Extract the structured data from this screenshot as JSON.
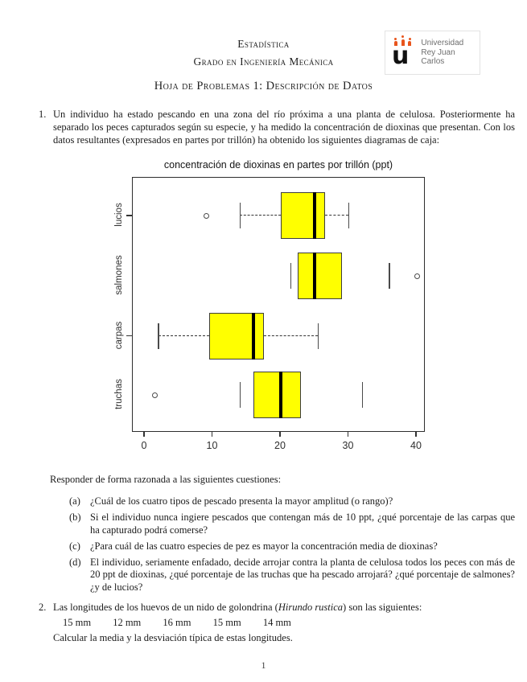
{
  "header": {
    "course": "Estadística",
    "degree": "Grado en Ingeniería Mecánica",
    "sheet_title": "Hoja de Problemas 1: Descripción de Datos",
    "logo": {
      "letter": "u",
      "line1": "Universidad",
      "line2": "Rey Juan Carlos",
      "crown_color": "#e8541c"
    }
  },
  "problem1": {
    "number": "1.",
    "intro": "Un individuo ha estado pescando en una zona del río próxima a una planta de celulosa. Posteriormente ha separado los peces capturados según su especie, y ha medido la concentración de dioxinas que presentan. Con los datos resultantes (expresados en partes por trillón) ha obtenido los siguientes diagramas de caja:",
    "responder": "Responder de forma razonada a las siguientes cuestiones:",
    "questions": [
      {
        "label": "(a)",
        "text": "¿Cuál de los cuatro tipos de pescado presenta la mayor amplitud (o rango)?"
      },
      {
        "label": "(b)",
        "text": "Si el individuo nunca ingiere pescados que contengan más de 10 ppt, ¿qué porcentaje de las carpas que ha capturado podrá comerse?"
      },
      {
        "label": "(c)",
        "text": "¿Para cuál de las cuatro especies de pez es mayor la concentración media de dioxinas?"
      },
      {
        "label": "(d)",
        "text": "El individuo, seriamente enfadado, decide arrojar contra la planta de celulosa todos los peces con más de 20 ppt de dioxinas, ¿qué porcentaje de las truchas que ha pescado arrojará? ¿qué porcentaje de salmones? ¿y de lucios?"
      }
    ]
  },
  "problem2": {
    "number": "2.",
    "intro_prefix": "Las longitudes de los huevos de un nido de golondrina (",
    "intro_italic": "Hirundo rustica",
    "intro_suffix": ") son las siguientes:",
    "values": [
      "15 mm",
      "12 mm",
      "16 mm",
      "15 mm",
      "14 mm"
    ],
    "outro": "Calcular la media y la desviación típica de estas longitudes."
  },
  "page_number": "1",
  "chart_data": {
    "type": "boxplot-horizontal",
    "title": "concentración de dioxinas en partes por trillón (ppt)",
    "xlabel": "",
    "ylabel": "",
    "xlim": [
      0,
      40
    ],
    "x_ticks": [
      0,
      10,
      20,
      30,
      40
    ],
    "grid": false,
    "box_fill": "#ffff00",
    "categories": [
      "lucios",
      "salmones",
      "carpas",
      "truchas"
    ],
    "series": [
      {
        "name": "lucios",
        "whisker_low": 14,
        "q1": 20,
        "median": 25,
        "q3": 26.5,
        "whisker_high": 30,
        "outliers": [
          9
        ],
        "dashed_whiskers": true,
        "axis_tick": true
      },
      {
        "name": "salmones",
        "whisker_low": 21.5,
        "q1": 22.5,
        "median": 25,
        "q3": 29,
        "whisker_high": 36,
        "outliers": [
          40
        ],
        "dashed_whiskers": false,
        "axis_tick": false
      },
      {
        "name": "carpas",
        "whisker_low": 2,
        "q1": 9.5,
        "median": 16,
        "q3": 17.5,
        "whisker_high": 25.5,
        "outliers": [],
        "dashed_whiskers": true,
        "axis_tick": true
      },
      {
        "name": "truchas",
        "whisker_low": 14,
        "q1": 16,
        "median": 20,
        "q3": 23,
        "whisker_high": 32,
        "outliers": [
          1.5
        ],
        "dashed_whiskers": false,
        "axis_tick": false
      }
    ]
  }
}
